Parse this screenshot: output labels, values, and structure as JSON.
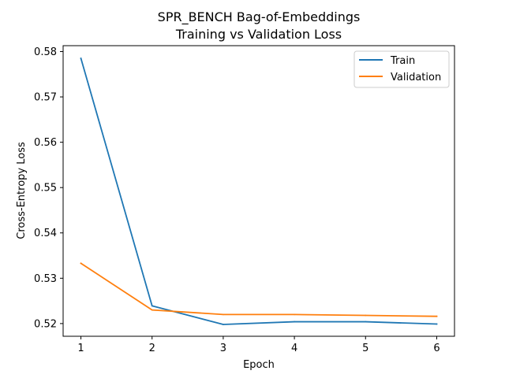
{
  "chart_data": {
    "type": "line",
    "title_line1": "SPR_BENCH Bag-of-Embeddings",
    "title_line2": "Training vs Validation Loss",
    "xlabel": "Epoch",
    "ylabel": "Cross-Entropy Loss",
    "x": [
      1,
      2,
      3,
      4,
      5,
      6
    ],
    "xticks": [
      "1",
      "2",
      "3",
      "4",
      "5",
      "6"
    ],
    "yticks": [
      "0.52",
      "0.53",
      "0.54",
      "0.55",
      "0.56",
      "0.57",
      "0.58"
    ],
    "ytick_values": [
      0.52,
      0.53,
      0.54,
      0.55,
      0.56,
      0.57,
      0.58
    ],
    "xlim": [
      0.75,
      6.25
    ],
    "ylim": [
      0.5172,
      0.5813
    ],
    "grid": false,
    "legend_position": "top-right",
    "series": [
      {
        "name": "Train",
        "color": "#1f77b4",
        "values": [
          0.5785,
          0.5239,
          0.5198,
          0.5204,
          0.5204,
          0.5199
        ]
      },
      {
        "name": "Validation",
        "color": "#ff7f0e",
        "values": [
          0.5333,
          0.523,
          0.522,
          0.522,
          0.5218,
          0.5216
        ]
      }
    ]
  }
}
